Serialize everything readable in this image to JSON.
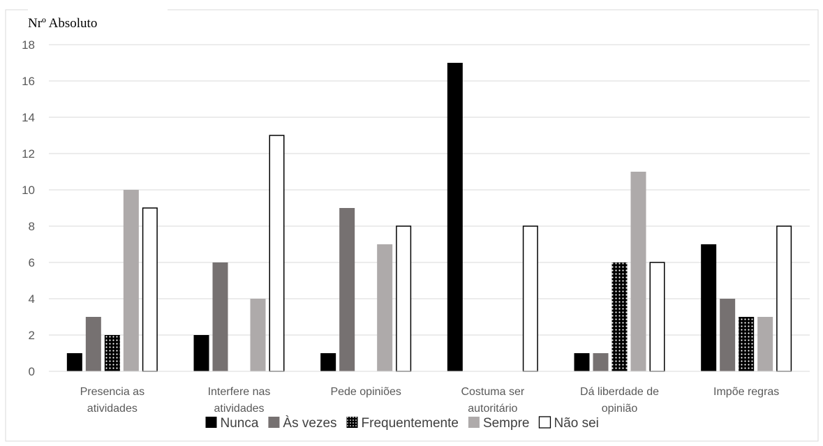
{
  "chart_data": {
    "type": "bar",
    "ylabel": "Nrº Absoluto",
    "xlabel": "",
    "ylim": [
      0,
      18
    ],
    "yticks": [
      0,
      2,
      4,
      6,
      8,
      10,
      12,
      14,
      16,
      18
    ],
    "grid": true,
    "legend_position": "bottom",
    "categories": [
      [
        "Presencia as",
        "atividades"
      ],
      [
        "Interfere nas",
        "atividades"
      ],
      [
        "Pede opiniões"
      ],
      [
        "Costuma ser",
        "autoritário"
      ],
      [
        "Dá liberdade de",
        "opinião"
      ],
      [
        "Impõe regras"
      ]
    ],
    "series": [
      {
        "name": "Nunca",
        "fill": "#000000",
        "pattern": "solid",
        "values": [
          1,
          2,
          1,
          17,
          1,
          7
        ]
      },
      {
        "name": "Às vezes",
        "fill": "#767171",
        "pattern": "solid",
        "values": [
          3,
          6,
          9,
          0,
          1,
          4
        ]
      },
      {
        "name": "Frequentemente",
        "fill": "#000000",
        "pattern": "dots",
        "values": [
          2,
          0,
          0,
          0,
          6,
          3
        ]
      },
      {
        "name": "Sempre",
        "fill": "#aeaaaa",
        "pattern": "solid",
        "values": [
          10,
          4,
          7,
          0,
          11,
          3
        ]
      },
      {
        "name": "Não sei",
        "fill": "#ffffff",
        "pattern": "outline",
        "values": [
          9,
          13,
          8,
          8,
          6,
          8
        ]
      }
    ]
  }
}
